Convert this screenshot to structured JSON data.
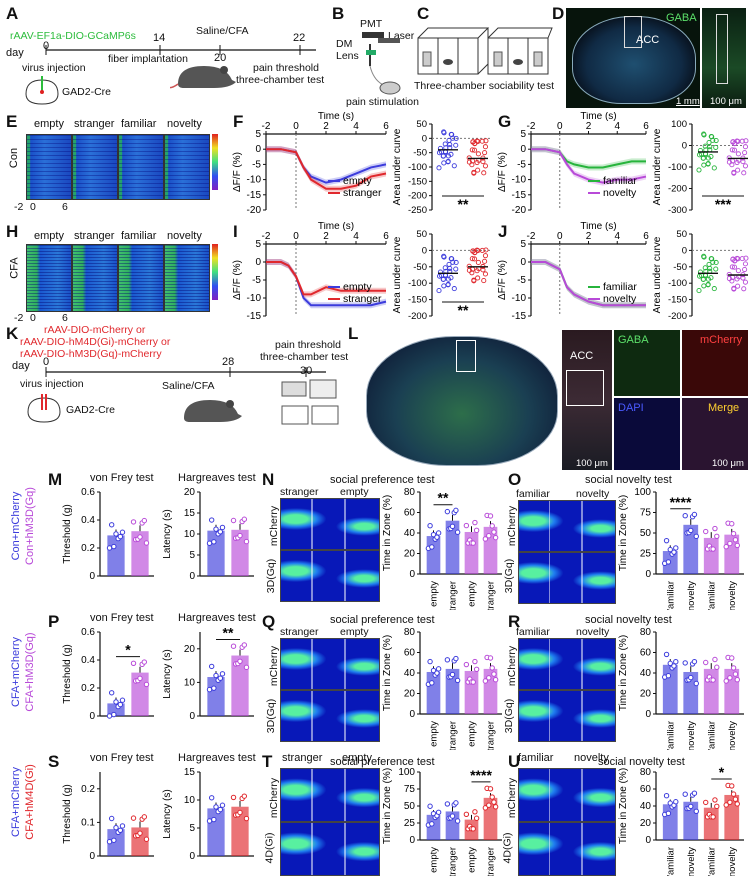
{
  "panels": {
    "A": {
      "label": "A",
      "virus": "rAAV-EF1a-DIO-GCaMP6s",
      "day_label": "day",
      "days": [
        "0",
        "14",
        "20",
        "22"
      ],
      "events": [
        "virus injection",
        "fiber implantation",
        "Saline/CFA",
        "pain threshold",
        "three-chamber test"
      ],
      "mouse_line": "GAD2-Cre"
    },
    "B": {
      "label": "B",
      "items": [
        "PMT",
        "Laser",
        "DM",
        "Lens",
        "pain stimulation"
      ]
    },
    "C": {
      "label": "C",
      "caption": "Three-chamber sociability test"
    },
    "D": {
      "label": "D",
      "stain": "GABA",
      "region": "ACC",
      "scale1": "1 mm",
      "scale2": "100 μm"
    },
    "E": {
      "label": "E",
      "group": "Con",
      "columns": [
        "empty",
        "stranger",
        "familiar",
        "novelty"
      ],
      "x_ticks": [
        "-2",
        "0",
        "6"
      ]
    },
    "H": {
      "label": "H",
      "group": "CFA",
      "columns": [
        "empty",
        "stranger",
        "familiar",
        "novelty"
      ],
      "x_ticks": [
        "-2",
        "0",
        "6"
      ]
    },
    "F": {
      "label": "F",
      "legend": [
        "empty",
        "stranger"
      ],
      "sig": "**"
    },
    "G": {
      "label": "G",
      "legend": [
        "familiar",
        "novelty"
      ],
      "sig": "***"
    },
    "I": {
      "label": "I",
      "legend": [
        "empty",
        "stranger"
      ],
      "sig": "**"
    },
    "J": {
      "label": "J",
      "legend": [
        "familiar",
        "novelty"
      ],
      "sig": ""
    },
    "K": {
      "label": "K",
      "viruses": [
        "rAAV-DIO-mCherry or",
        "rAAV-DIO-hM4D(Gi)-mCherry or",
        "rAAV-DIO-hM3D(Gq)-mCherry"
      ],
      "day_label": "day",
      "days": [
        "0",
        "28",
        "30"
      ],
      "events": [
        "virus injection",
        "Saline/CFA",
        "pain threshold",
        "three-chamber test"
      ],
      "mouse_line": "GAD2-Cre"
    },
    "L": {
      "label": "L",
      "region": "ACC",
      "channels": [
        "GABA",
        "mCherry",
        "DAPI",
        "Merge"
      ],
      "scale1": "1 mm",
      "scale2": "100 μm",
      "scale3": "100 μm"
    },
    "M": {
      "label": "M",
      "groups": [
        "Con+mCherry",
        "Con+hM3D(Gq)"
      ],
      "tests": [
        "von Frey test",
        "Hargreaves test"
      ],
      "sig1": "",
      "sig2": ""
    },
    "P": {
      "label": "P",
      "groups": [
        "CFA+mCherry",
        "CFA+hM3D(Gq)"
      ],
      "tests": [
        "von Frey test",
        "Hargreaves test"
      ],
      "sig1": "*",
      "sig2": "**"
    },
    "S": {
      "label": "S",
      "groups": [
        "CFA+mCherry",
        "CFA+hM4D(Gi)"
      ],
      "tests": [
        "von Frey test",
        "Hargreaves test"
      ],
      "sig1": "",
      "sig2": ""
    },
    "N": {
      "label": "N",
      "title": "social preference test",
      "chambers": [
        "stranger",
        "empty"
      ],
      "rows": [
        "mCherry",
        "3D(Gq)"
      ],
      "sig": "**"
    },
    "O": {
      "label": "O",
      "title": "social novelty test",
      "chambers": [
        "familiar",
        "novelty"
      ],
      "rows": [
        "mCherry",
        "3D(Gq)"
      ],
      "sig": "****"
    },
    "Q": {
      "label": "Q",
      "title": "social preference test",
      "chambers": [
        "stranger",
        "empty"
      ],
      "rows": [
        "mCherry",
        "3D(Gq)"
      ],
      "sig": ""
    },
    "R": {
      "label": "R",
      "title": "social novelty test",
      "chambers": [
        "familiar",
        "novelty"
      ],
      "rows": [
        "mCherry",
        "3D(Gq)"
      ],
      "sig": ""
    },
    "T": {
      "label": "T",
      "title": "social preference test",
      "chambers": [
        "stranger",
        "empty"
      ],
      "rows": [
        "mCherry",
        "4D(Gi)"
      ],
      "sig": "****"
    },
    "U": {
      "label": "U",
      "title": "social novelty test",
      "chambers": [
        "familiar",
        "novelty"
      ],
      "rows": [
        "mCherry",
        "4D(Gi)"
      ],
      "sig": "*"
    }
  },
  "axes": {
    "time": "Time (s)",
    "dff": "ΔF/F (%)",
    "auc": "Area under curve",
    "threshold": "Threshold (g)",
    "latency": "Latency (s)",
    "zone": "Time in Zone (%)"
  },
  "colors": {
    "green": "#27b43c",
    "blue": "#3c3cdc",
    "red": "#e0282d",
    "purple": "#b84ad8",
    "lightgreen": "#5fd06a",
    "violet": "#8a2be2"
  },
  "chart_data": [
    {
      "id": "F-trace",
      "type": "line",
      "xlim": [
        -2,
        6
      ],
      "ylim": [
        -20,
        5
      ],
      "x": [
        -2,
        -1,
        0,
        0.5,
        1,
        2,
        3,
        4,
        5,
        6
      ],
      "series": [
        {
          "name": "empty",
          "values": [
            0,
            0,
            -1,
            -6,
            -9,
            -11,
            -10,
            -8,
            -6,
            -5
          ]
        },
        {
          "name": "stranger",
          "values": [
            0,
            0,
            -1,
            -6,
            -10,
            -13,
            -13,
            -12,
            -9,
            -8
          ]
        }
      ]
    },
    {
      "id": "F-auc",
      "type": "scatter",
      "ylim": [
        -250,
        50
      ],
      "series": [
        {
          "name": "empty",
          "mean": -40
        },
        {
          "name": "stranger",
          "mean": -70
        }
      ]
    },
    {
      "id": "G-trace",
      "type": "line",
      "xlim": [
        -2,
        6
      ],
      "ylim": [
        -20,
        5
      ],
      "x": [
        -2,
        -1,
        0,
        0.5,
        1,
        2,
        3,
        4,
        5,
        6
      ],
      "series": [
        {
          "name": "familiar",
          "values": [
            0,
            0,
            -1,
            -4,
            -5,
            -6,
            -6,
            -5,
            -4,
            -4
          ]
        },
        {
          "name": "novelty",
          "values": [
            0,
            0,
            -1,
            -5,
            -8,
            -10,
            -11,
            -10,
            -10,
            -9
          ]
        }
      ]
    },
    {
      "id": "G-auc",
      "type": "scatter",
      "ylim": [
        -300,
        100
      ],
      "series": [
        {
          "name": "familiar",
          "mean": -30
        },
        {
          "name": "novelty",
          "mean": -60
        }
      ]
    },
    {
      "id": "I-trace",
      "type": "line",
      "xlim": [
        -2,
        6
      ],
      "ylim": [
        -15,
        5
      ],
      "x": [
        -2,
        -1,
        -0.5,
        0,
        0.5,
        1,
        2,
        3,
        4,
        5,
        6
      ],
      "series": [
        {
          "name": "empty",
          "values": [
            0,
            0,
            -1,
            -4,
            -10,
            -12,
            -12,
            -12,
            -12,
            -12,
            -11
          ]
        },
        {
          "name": "stranger",
          "values": [
            0,
            0,
            -1,
            -4,
            -9,
            -9,
            -7,
            -8,
            -8,
            -8,
            -8
          ]
        }
      ]
    },
    {
      "id": "I-auc",
      "type": "scatter",
      "ylim": [
        -200,
        50
      ],
      "series": [
        {
          "name": "empty",
          "mean": -70
        },
        {
          "name": "stranger",
          "mean": -50
        }
      ]
    },
    {
      "id": "J-trace",
      "type": "line",
      "xlim": [
        -2,
        6
      ],
      "ylim": [
        -15,
        5
      ],
      "x": [
        -2,
        -1,
        0,
        0.5,
        1,
        2,
        3,
        4,
        5,
        6
      ],
      "series": [
        {
          "name": "familiar",
          "values": [
            0,
            0,
            -2,
            -7,
            -9,
            -11,
            -12,
            -12,
            -12,
            -12
          ]
        },
        {
          "name": "novelty",
          "values": [
            0,
            0,
            -2,
            -7,
            -9,
            -11,
            -12,
            -12,
            -12,
            -12
          ]
        }
      ]
    },
    {
      "id": "J-auc",
      "type": "scatter",
      "ylim": [
        -200,
        50
      ],
      "series": [
        {
          "name": "familiar",
          "mean": -70
        },
        {
          "name": "novelty",
          "mean": -75
        }
      ]
    },
    {
      "id": "M-vf",
      "type": "bar",
      "categories": [
        "Con+mCherry",
        "Con+hM3D(Gq)"
      ],
      "values": [
        0.29,
        0.32
      ],
      "ylim": [
        0,
        0.6
      ]
    },
    {
      "id": "M-hg",
      "type": "bar",
      "categories": [
        "Con+mCherry",
        "Con+hM3D(Gq)"
      ],
      "values": [
        10.8,
        11.0
      ],
      "ylim": [
        0,
        20
      ]
    },
    {
      "id": "P-vf",
      "type": "bar",
      "categories": [
        "CFA+mCherry",
        "CFA+hM3D(Gq)"
      ],
      "values": [
        0.09,
        0.31
      ],
      "ylim": [
        0,
        0.6
      ]
    },
    {
      "id": "P-hg",
      "type": "bar",
      "categories": [
        "CFA+mCherry",
        "CFA+hM3D(Gq)"
      ],
      "values": [
        11.6,
        18.0
      ],
      "ylim": [
        0,
        25
      ]
    },
    {
      "id": "S-vf",
      "type": "bar",
      "categories": [
        "CFA+mCherry",
        "CFA+hM4D(Gi)"
      ],
      "values": [
        0.08,
        0.085
      ],
      "ylim": [
        0,
        0.25
      ]
    },
    {
      "id": "S-hg",
      "type": "bar",
      "categories": [
        "CFA+mCherry",
        "CFA+hM4D(Gi)"
      ],
      "values": [
        8.5,
        8.8
      ],
      "ylim": [
        0,
        15
      ]
    },
    {
      "id": "N-bar",
      "type": "bar",
      "categories": [
        "empty",
        "stranger",
        "empty",
        "stranger"
      ],
      "values": [
        37,
        52,
        41,
        46
      ],
      "ylim": [
        0,
        80
      ]
    },
    {
      "id": "O-bar",
      "type": "bar",
      "categories": [
        "familiar",
        "novelty",
        "familiar",
        "novelty"
      ],
      "values": [
        28,
        60,
        44,
        48
      ],
      "ylim": [
        0,
        100
      ]
    },
    {
      "id": "Q-bar",
      "type": "bar",
      "categories": [
        "empty",
        "stranger",
        "empty",
        "stranger"
      ],
      "values": [
        41,
        44,
        42,
        44
      ],
      "ylim": [
        0,
        80
      ]
    },
    {
      "id": "R-bar",
      "type": "bar",
      "categories": [
        "familiar",
        "novelty",
        "familiar",
        "novelty"
      ],
      "values": [
        48,
        41,
        44,
        44
      ],
      "ylim": [
        0,
        80
      ]
    },
    {
      "id": "T-bar",
      "type": "bar",
      "categories": [
        "empty",
        "stranger",
        "empty",
        "stranger"
      ],
      "values": [
        37,
        42,
        30,
        62
      ],
      "ylim": [
        0,
        100
      ]
    },
    {
      "id": "U-bar",
      "type": "bar",
      "categories": [
        "familiar",
        "novelty",
        "familiar",
        "novelty"
      ],
      "values": [
        42,
        45,
        38,
        53
      ],
      "ylim": [
        0,
        80
      ]
    }
  ]
}
